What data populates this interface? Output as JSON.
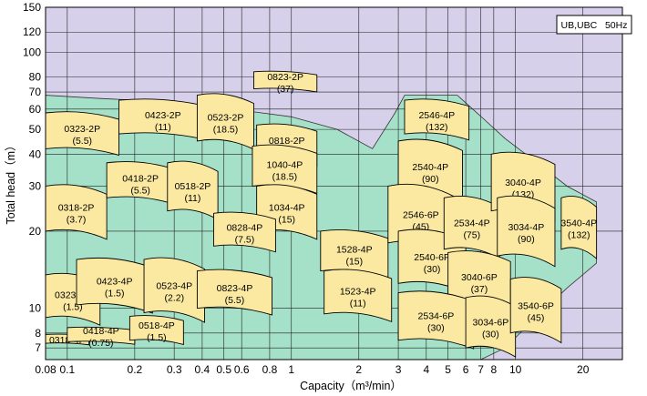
{
  "chart_data": {
    "type": "pump-selection-chart",
    "badge": "UB,UBC   50Hz",
    "xlabel": "Capacity（m³/min）",
    "ylabel": "Total head（m）",
    "x_scale": "log",
    "y_scale": "log",
    "xlim": [
      0.08,
      30
    ],
    "ylim": [
      6.3,
      150
    ],
    "x_ticks": [
      "0.08",
      "0.1",
      "0.2",
      "0.3",
      "0.4",
      "0.5",
      "0.6",
      "0.8",
      "1",
      "2",
      "3",
      "4",
      "5",
      "6",
      "7",
      "8",
      "10",
      "20"
    ],
    "y_ticks": [
      "7",
      "8",
      "10",
      "20",
      "30",
      "40",
      "50",
      "60",
      "70",
      "80",
      "100",
      "120",
      "150"
    ],
    "colors": {
      "background": "#d7d0ea",
      "envelope": "#a5e0c8",
      "curve": "#fbe9a2",
      "grid": "#222222"
    },
    "models": [
      {
        "label": "0318-4P",
        "size": "",
        "q": [
          0.08,
          0.125
        ],
        "h": [
          7.3,
          7.9
        ]
      },
      {
        "label": "0418-4P",
        "size": "(0.75)",
        "q": [
          0.1,
          0.2
        ],
        "h": [
          7.4,
          8.4
        ]
      },
      {
        "label": "0518-4P",
        "size": "(1.5)",
        "q": [
          0.19,
          0.33
        ],
        "h": [
          7.5,
          9.3
        ]
      },
      {
        "label": "0323-4P",
        "size": "(1.5)",
        "q": [
          0.08,
          0.14
        ],
        "h": [
          9.2,
          13.5
        ]
      },
      {
        "label": "0423-4P",
        "size": "(1.5)",
        "q": [
          0.11,
          0.24
        ],
        "h": [
          10.3,
          15.5
        ]
      },
      {
        "label": "0523-4P",
        "size": "(2.2)",
        "q": [
          0.22,
          0.41
        ],
        "h": [
          9.6,
          15.5
        ]
      },
      {
        "label": "0823-4P",
        "size": "(5.5)",
        "q": [
          0.38,
          0.82
        ],
        "h": [
          10,
          14
        ]
      },
      {
        "label": "0318-2P",
        "size": "(3.7)",
        "q": [
          0.08,
          0.15
        ],
        "h": [
          20,
          30
        ]
      },
      {
        "label": "0418-2P",
        "size": "(5.5)",
        "q": [
          0.15,
          0.3
        ],
        "h": [
          27,
          37
        ]
      },
      {
        "label": "0518-2P",
        "size": "(11)",
        "q": [
          0.28,
          0.47
        ],
        "h": [
          24,
          37
        ]
      },
      {
        "label": "0323-2P",
        "size": "(5.5)",
        "q": [
          0.08,
          0.17
        ],
        "h": [
          42,
          58
        ]
      },
      {
        "label": "0423-2P",
        "size": "(11)",
        "q": [
          0.17,
          0.42
        ],
        "h": [
          48,
          65
        ]
      },
      {
        "label": "0523-2P",
        "size": "(18.5)",
        "q": [
          0.38,
          0.68
        ],
        "h": [
          45,
          68
        ]
      },
      {
        "label": "0823-2P",
        "size": "(37)",
        "q": [
          0.68,
          1.3
        ],
        "h": [
          72,
          84
        ]
      },
      {
        "label": "0818-2P",
        "size": "(22)",
        "q": [
          0.7,
          1.3
        ],
        "h": [
          38,
          52
        ]
      },
      {
        "label": "1040-4P",
        "size": "(18.5)",
        "q": [
          0.67,
          1.3
        ],
        "h": [
          30,
          43
        ]
      },
      {
        "label": "1034-4P",
        "size": "(15)",
        "q": [
          0.7,
          1.3
        ],
        "h": [
          20,
          30
        ]
      },
      {
        "label": "0828-4P",
        "size": "(7.5)",
        "q": [
          0.45,
          0.85
        ],
        "h": [
          17.5,
          23.5
        ]
      },
      {
        "label": "1528-4P",
        "size": "(15)",
        "q": [
          1.35,
          2.7
        ],
        "h": [
          14,
          20
        ]
      },
      {
        "label": "1523-4P",
        "size": "(11)",
        "q": [
          1.4,
          2.8
        ],
        "h": [
          9.5,
          14
        ]
      },
      {
        "label": "2546-4P",
        "size": "(132)",
        "q": [
          3.2,
          6.2
        ],
        "h": [
          48,
          65
        ]
      },
      {
        "label": "2540-4P",
        "size": "(90)",
        "q": [
          3,
          5.8
        ],
        "h": [
          28,
          45
        ]
      },
      {
        "label": "2546-6P",
        "size": "(45)",
        "q": [
          2.7,
          5.3
        ],
        "h": [
          18,
          30
        ]
      },
      {
        "label": "2540-6P",
        "size": "(30)",
        "q": [
          3,
          6
        ],
        "h": [
          12.5,
          20
        ]
      },
      {
        "label": "2534-4P",
        "size": "(75)",
        "q": [
          4.8,
          8.5
        ],
        "h": [
          17,
          27
        ]
      },
      {
        "label": "3040-4P",
        "size": "(132)",
        "q": [
          7.8,
          15
        ],
        "h": [
          24,
          40
        ]
      },
      {
        "label": "3034-4P",
        "size": "(90)",
        "q": [
          8.3,
          15
        ],
        "h": [
          16,
          27
        ]
      },
      {
        "label": "3540-4P",
        "size": "(132)",
        "q": [
          16,
          23
        ],
        "h": [
          17,
          27
        ]
      },
      {
        "label": "3040-6P",
        "size": "(37)",
        "q": [
          5,
          9.5
        ],
        "h": [
          10.5,
          16.5
        ]
      },
      {
        "label": "2534-6P",
        "size": "(30)",
        "q": [
          3,
          6.5
        ],
        "h": [
          7.5,
          11.5
        ]
      },
      {
        "label": "3034-6P",
        "size": "(30)",
        "q": [
          6,
          10
        ],
        "h": [
          7,
          11
        ]
      },
      {
        "label": "3540-6P",
        "size": "(45)",
        "q": [
          9.5,
          16
        ],
        "h": [
          8,
          13
        ]
      }
    ]
  }
}
